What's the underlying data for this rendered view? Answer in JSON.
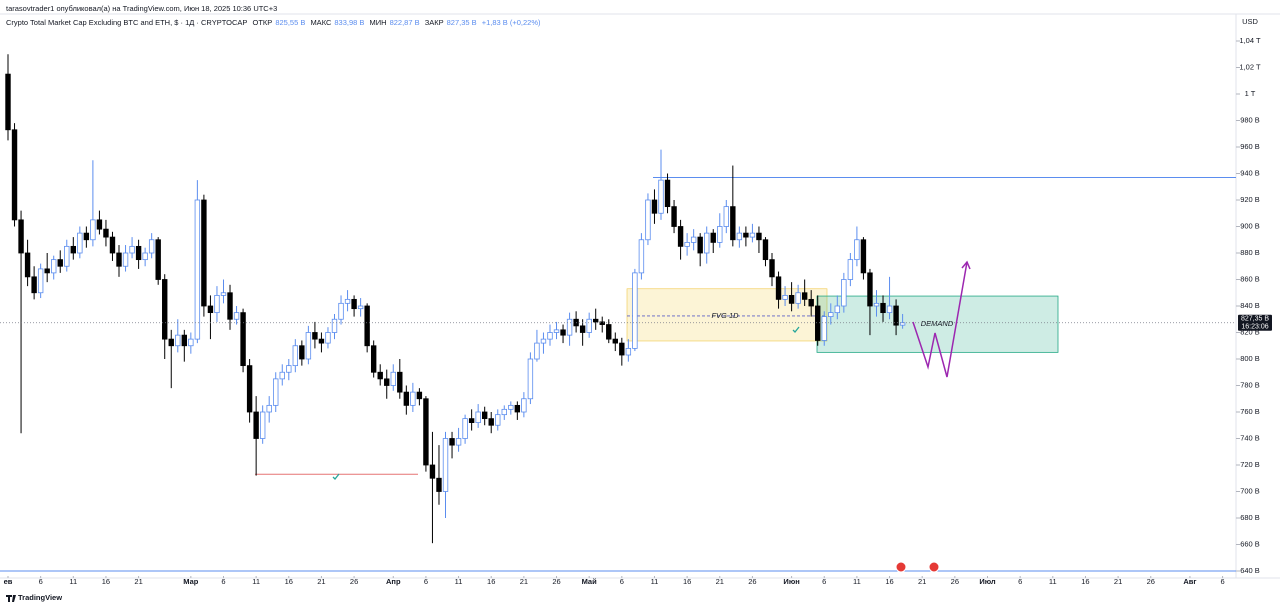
{
  "header": {
    "author_line": "tarasovtrader1 опубликовал(а) на TradingView.com, Июн 18, 2025 10:36 UTC+3"
  },
  "chart_data": {
    "type": "candlestick",
    "title": "Crypto Total Market Cap Excluding BTC and ETH, $ · 1Д · CRYPTOCAP",
    "legend": {
      "open_name": "ОТКР",
      "open": "825,55 B",
      "high_name": "МАКС",
      "high": "833,98 B",
      "low_name": "МИН",
      "low": "822,87 B",
      "close_name": "ЗАКР",
      "close": "827,35 B",
      "change": "+1,83 B (+0,22%)"
    },
    "currency": "USD",
    "last_price_label": "827,35 B",
    "countdown": "16:23:06",
    "up_color": "#5b8def",
    "down_color": "#000000",
    "ohlc": [
      [
        1015,
        1030,
        965,
        973
      ],
      [
        973,
        978,
        900,
        905
      ],
      [
        905,
        912,
        744,
        880
      ],
      [
        880,
        890,
        855,
        862
      ],
      [
        862,
        870,
        845,
        850
      ],
      [
        850,
        872,
        846,
        868
      ],
      [
        868,
        880,
        858,
        865
      ],
      [
        865,
        878,
        860,
        875
      ],
      [
        875,
        882,
        865,
        870
      ],
      [
        870,
        890,
        866,
        885
      ],
      [
        885,
        892,
        875,
        880
      ],
      [
        880,
        900,
        876,
        895
      ],
      [
        895,
        900,
        884,
        890
      ],
      [
        890,
        950,
        885,
        905
      ],
      [
        905,
        912,
        894,
        898
      ],
      [
        898,
        905,
        885,
        892
      ],
      [
        892,
        896,
        874,
        880
      ],
      [
        880,
        886,
        862,
        870
      ],
      [
        870,
        886,
        866,
        880
      ],
      [
        880,
        892,
        876,
        885
      ],
      [
        885,
        890,
        868,
        875
      ],
      [
        875,
        884,
        870,
        880
      ],
      [
        880,
        895,
        876,
        890
      ],
      [
        890,
        892,
        856,
        860
      ],
      [
        860,
        864,
        800,
        815
      ],
      [
        815,
        822,
        778,
        810
      ],
      [
        810,
        830,
        805,
        818
      ],
      [
        818,
        822,
        798,
        810
      ],
      [
        810,
        820,
        804,
        815
      ],
      [
        815,
        935,
        812,
        920
      ],
      [
        920,
        924,
        832,
        840
      ],
      [
        840,
        848,
        815,
        835
      ],
      [
        835,
        855,
        828,
        848
      ],
      [
        848,
        860,
        842,
        850
      ],
      [
        850,
        856,
        822,
        830
      ],
      [
        830,
        840,
        826,
        835
      ],
      [
        835,
        838,
        790,
        795
      ],
      [
        795,
        800,
        752,
        760
      ],
      [
        760,
        772,
        712,
        740
      ],
      [
        740,
        765,
        736,
        760
      ],
      [
        760,
        772,
        752,
        765
      ],
      [
        765,
        790,
        760,
        785
      ],
      [
        785,
        796,
        780,
        790
      ],
      [
        790,
        800,
        784,
        795
      ],
      [
        795,
        815,
        790,
        810
      ],
      [
        810,
        814,
        795,
        800
      ],
      [
        800,
        825,
        796,
        820
      ],
      [
        820,
        828,
        808,
        815
      ],
      [
        815,
        820,
        805,
        812
      ],
      [
        812,
        824,
        808,
        820
      ],
      [
        820,
        834,
        815,
        830
      ],
      [
        830,
        848,
        826,
        842
      ],
      [
        842,
        852,
        836,
        845
      ],
      [
        845,
        848,
        832,
        838
      ],
      [
        838,
        846,
        832,
        840
      ],
      [
        840,
        842,
        805,
        810
      ],
      [
        810,
        814,
        786,
        790
      ],
      [
        790,
        796,
        780,
        785
      ],
      [
        785,
        792,
        770,
        780
      ],
      [
        780,
        796,
        776,
        790
      ],
      [
        790,
        800,
        770,
        775
      ],
      [
        775,
        780,
        758,
        765
      ],
      [
        765,
        782,
        760,
        775
      ],
      [
        775,
        778,
        765,
        770
      ],
      [
        770,
        772,
        715,
        720
      ],
      [
        720,
        745,
        661,
        710
      ],
      [
        710,
        735,
        690,
        700
      ],
      [
        700,
        745,
        680,
        740
      ],
      [
        740,
        745,
        725,
        735
      ],
      [
        735,
        748,
        730,
        740
      ],
      [
        740,
        758,
        736,
        755
      ],
      [
        755,
        762,
        746,
        752
      ],
      [
        752,
        766,
        748,
        760
      ],
      [
        760,
        764,
        750,
        755
      ],
      [
        755,
        760,
        744,
        750
      ],
      [
        750,
        762,
        746,
        758
      ],
      [
        758,
        765,
        754,
        762
      ],
      [
        762,
        768,
        758,
        765
      ],
      [
        765,
        768,
        754,
        760
      ],
      [
        760,
        775,
        756,
        770
      ],
      [
        770,
        805,
        766,
        800
      ],
      [
        800,
        822,
        798,
        812
      ],
      [
        812,
        820,
        804,
        815
      ],
      [
        815,
        826,
        810,
        820
      ],
      [
        820,
        828,
        815,
        822
      ],
      [
        822,
        826,
        812,
        818
      ],
      [
        818,
        835,
        810,
        830
      ],
      [
        830,
        836,
        820,
        825
      ],
      [
        825,
        830,
        810,
        820
      ],
      [
        820,
        835,
        816,
        830
      ],
      [
        830,
        838,
        822,
        828
      ],
      [
        828,
        832,
        820,
        826
      ],
      [
        826,
        830,
        812,
        815
      ],
      [
        815,
        820,
        806,
        812
      ],
      [
        812,
        816,
        795,
        803
      ],
      [
        803,
        815,
        798,
        808
      ],
      [
        808,
        868,
        806,
        865
      ],
      [
        865,
        895,
        860,
        890
      ],
      [
        890,
        925,
        886,
        920
      ],
      [
        920,
        928,
        902,
        910
      ],
      [
        910,
        958,
        905,
        935
      ],
      [
        935,
        940,
        910,
        915
      ],
      [
        915,
        920,
        895,
        900
      ],
      [
        900,
        905,
        875,
        885
      ],
      [
        885,
        895,
        878,
        888
      ],
      [
        888,
        898,
        882,
        892
      ],
      [
        892,
        895,
        870,
        880
      ],
      [
        880,
        900,
        872,
        895
      ],
      [
        895,
        898,
        880,
        888
      ],
      [
        888,
        910,
        884,
        900
      ],
      [
        900,
        920,
        895,
        915
      ],
      [
        915,
        946,
        885,
        890
      ],
      [
        890,
        900,
        884,
        895
      ],
      [
        895,
        900,
        885,
        892
      ],
      [
        892,
        902,
        888,
        895
      ],
      [
        895,
        900,
        880,
        890
      ],
      [
        890,
        892,
        870,
        875
      ],
      [
        875,
        880,
        855,
        862
      ],
      [
        862,
        866,
        838,
        845
      ],
      [
        845,
        855,
        840,
        848
      ],
      [
        848,
        858,
        836,
        842
      ],
      [
        842,
        856,
        838,
        850
      ],
      [
        850,
        860,
        840,
        845
      ],
      [
        845,
        852,
        832,
        840
      ],
      [
        840,
        848,
        810,
        814
      ],
      [
        814,
        836,
        810,
        832
      ],
      [
        832,
        842,
        826,
        835
      ],
      [
        835,
        848,
        830,
        840
      ],
      [
        840,
        865,
        835,
        860
      ],
      [
        860,
        880,
        855,
        875
      ],
      [
        875,
        900,
        870,
        890
      ],
      [
        890,
        892,
        860,
        865
      ],
      [
        865,
        868,
        818,
        840
      ],
      [
        840,
        852,
        832,
        842
      ],
      [
        842,
        848,
        828,
        835
      ],
      [
        835,
        862,
        830,
        840
      ],
      [
        840,
        845,
        818,
        825.55
      ],
      [
        825.55,
        833.98,
        822.87,
        827.35
      ]
    ],
    "xticks": [
      {
        "value": 0,
        "label": "ев"
      },
      {
        "value": 5,
        "label": "6"
      },
      {
        "value": 10,
        "label": "11"
      },
      {
        "value": 15,
        "label": "16"
      },
      {
        "value": 20,
        "label": "21"
      },
      {
        "value": 28,
        "label": "Мар"
      },
      {
        "value": 33,
        "label": "6"
      },
      {
        "value": 38,
        "label": "11"
      },
      {
        "value": 43,
        "label": "16"
      },
      {
        "value": 48,
        "label": "21"
      },
      {
        "value": 53,
        "label": "26"
      },
      {
        "value": 59,
        "label": "Апр"
      },
      {
        "value": 64,
        "label": "6"
      },
      {
        "value": 69,
        "label": "11"
      },
      {
        "value": 74,
        "label": "16"
      },
      {
        "value": 79,
        "label": "21"
      },
      {
        "value": 84,
        "label": "26"
      },
      {
        "value": 89,
        "label": "Май"
      },
      {
        "value": 94,
        "label": "6"
      },
      {
        "value": 99,
        "label": "11"
      },
      {
        "value": 104,
        "label": "16"
      },
      {
        "value": 109,
        "label": "21"
      },
      {
        "value": 114,
        "label": "26"
      },
      {
        "value": 120,
        "label": "Июн"
      },
      {
        "value": 125,
        "label": "6"
      },
      {
        "value": 130,
        "label": "11"
      },
      {
        "value": 135,
        "label": "16"
      },
      {
        "value": 140,
        "label": "21"
      },
      {
        "value": 145,
        "label": "26"
      },
      {
        "value": 150,
        "label": "Июл"
      },
      {
        "value": 155,
        "label": "6"
      },
      {
        "value": 160,
        "label": "11"
      },
      {
        "value": 165,
        "label": "16"
      },
      {
        "value": 170,
        "label": "21"
      },
      {
        "value": 175,
        "label": "26"
      },
      {
        "value": 181,
        "label": "Авг"
      },
      {
        "value": 186,
        "label": "6"
      }
    ],
    "ylim": [
      640,
      1040
    ],
    "yticks": [
      {
        "value": 640,
        "label": "640 B"
      },
      {
        "value": 660,
        "label": "660 B"
      },
      {
        "value": 680,
        "label": "680 B"
      },
      {
        "value": 700,
        "label": "700 B"
      },
      {
        "value": 720,
        "label": "720 B"
      },
      {
        "value": 740,
        "label": "740 B"
      },
      {
        "value": 760,
        "label": "760 B"
      },
      {
        "value": 780,
        "label": "780 B"
      },
      {
        "value": 800,
        "label": "800 B"
      },
      {
        "value": 820,
        "label": "820 B"
      },
      {
        "value": 840,
        "label": "840 B"
      },
      {
        "value": 860,
        "label": "860 B"
      },
      {
        "value": 880,
        "label": "880 B"
      },
      {
        "value": 900,
        "label": "900 B"
      },
      {
        "value": 920,
        "label": "920 B"
      },
      {
        "value": 940,
        "label": "940 B"
      },
      {
        "value": 960,
        "label": "960 B"
      },
      {
        "value": 980,
        "label": "980 B"
      },
      {
        "value": 1000,
        "label": "1 T"
      },
      {
        "value": 1020,
        "label": "1,02 T"
      },
      {
        "value": 1040,
        "label": "1,04 T"
      }
    ],
    "grid": false,
    "drawings": {
      "resistance": 937,
      "support": 713,
      "bottom_line": 640,
      "fvg": {
        "label": "FVG 1D",
        "range": [
          813.6,
          853
        ],
        "mid": 832.5,
        "color": "#f7e08a"
      },
      "demand": {
        "label": "DEMAND",
        "range": [
          805,
          847.5
        ],
        "color": "#22a884"
      }
    }
  },
  "footer": {
    "brand": "TradingView"
  }
}
